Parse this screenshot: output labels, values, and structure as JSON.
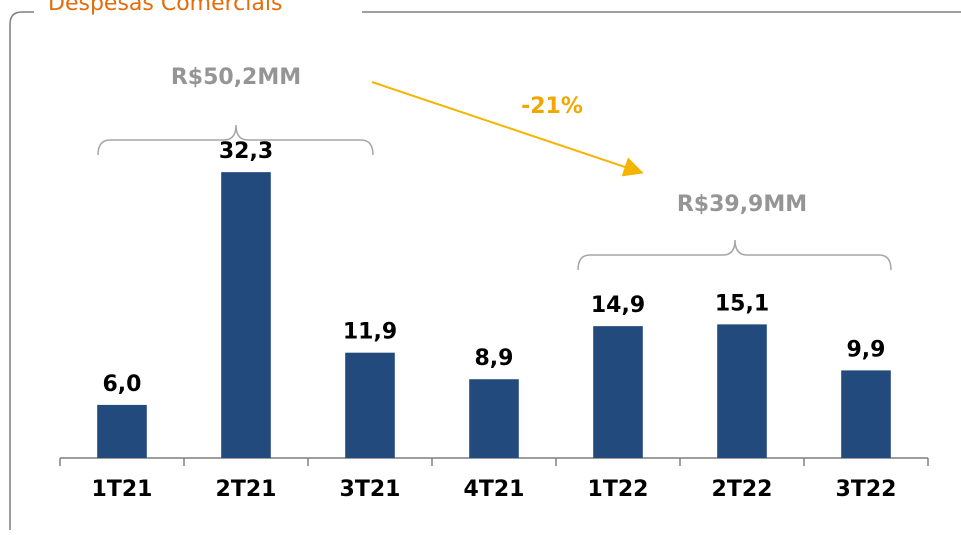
{
  "chart_data": {
    "type": "bar",
    "title": "Despesas Comerciais",
    "categories": [
      "1T21",
      "2T21",
      "3T21",
      "4T21",
      "1T22",
      "2T22",
      "3T22"
    ],
    "values": [
      6.0,
      32.3,
      11.9,
      8.9,
      14.9,
      15.1,
      9.9
    ],
    "value_labels": [
      "6,0",
      "32,3",
      "11,9",
      "8,9",
      "14,9",
      "15,1",
      "9,9"
    ],
    "color": "#224a7c",
    "ylim": [
      0,
      40
    ],
    "annotations": [
      "R$50,2MM",
      "-21%",
      "R$39,9MM"
    ]
  }
}
